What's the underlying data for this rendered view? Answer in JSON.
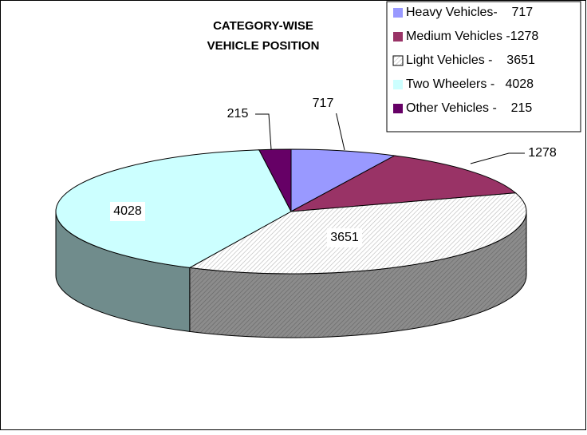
{
  "chart_data": {
    "type": "pie3d",
    "title": [
      "CATEGORY-WISE",
      "VEHICLE POSITION"
    ],
    "categories": [
      "Heavy Vehicles-    717",
      "Medium Vehicles -1278",
      "Light Vehicles -    3651",
      "Two Wheelers -   4028",
      "Other Vehicles -    215"
    ],
    "values": [
      717,
      1278,
      3651,
      4028,
      215
    ],
    "colors": [
      "#9999ff",
      "#993366",
      "#ffffff",
      "#ccffff",
      "#660066"
    ],
    "patterns": [
      null,
      null,
      "hatch",
      null,
      null
    ],
    "legend": "top-right"
  }
}
